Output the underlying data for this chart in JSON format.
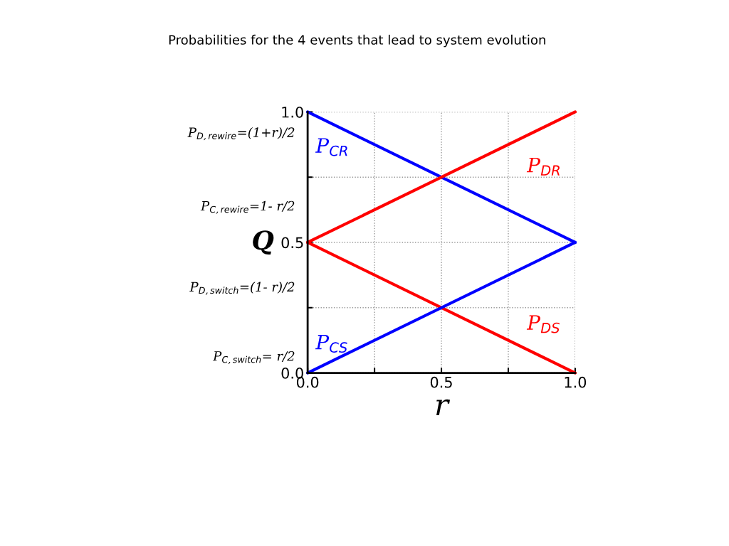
{
  "chart_data": {
    "type": "line",
    "title": "Probabilities for the 4 events that lead to system evolution",
    "xlabel": "r",
    "ylabel": "Q",
    "x": [
      0.0,
      1.0
    ],
    "series": [
      {
        "name": "P$_{CR}$",
        "color": "#0000ff",
        "values": [
          1.0,
          0.5
        ]
      },
      {
        "name": "P$_{DR}$",
        "color": "#ff0000",
        "values": [
          0.5,
          1.0
        ]
      },
      {
        "name": "P$_{DS}$",
        "color": "#ff0000",
        "values": [
          0.5,
          0.0
        ]
      },
      {
        "name": "P$_{CS}$",
        "color": "#0000ff",
        "values": [
          0.0,
          0.5
        ]
      }
    ],
    "xlim": [
      0.0,
      1.0
    ],
    "ylim": [
      0.0,
      1.0
    ],
    "xticks": [
      {
        "value": 0.0,
        "label": "0.0"
      },
      {
        "value": 0.25,
        "label": null
      },
      {
        "value": 0.5,
        "label": "0.5"
      },
      {
        "value": 0.75,
        "label": null
      },
      {
        "value": 1.0,
        "label": "1.0"
      }
    ],
    "yticks": [
      {
        "value": 0.0,
        "label": "0.0"
      },
      {
        "value": 0.25,
        "label": null
      },
      {
        "value": 0.5,
        "label": "0.5"
      },
      {
        "value": 0.75,
        "label": null
      },
      {
        "value": 1.0,
        "label": "1.0"
      }
    ],
    "grid": true,
    "legend": false,
    "marker": "none",
    "line_style": "solid",
    "annotations": [
      "P$_{D,rewire}$=(1+r)/2",
      "P$_{C,rewire}$=1- r/2",
      "P$_{D,switch}$=(1- r)/2",
      "P$_{C,switch}$= r/2"
    ]
  }
}
